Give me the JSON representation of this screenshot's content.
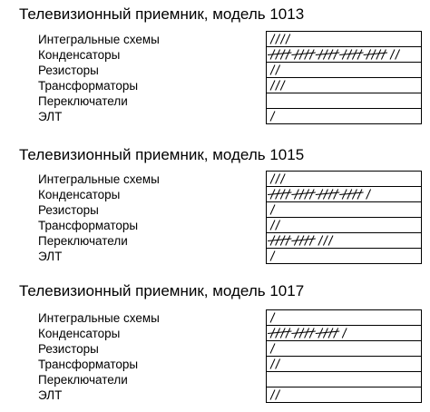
{
  "sections": [
    {
      "title": "Телевизионный приемник, модель 1013",
      "rows": [
        {
          "label": "Интегральные схемы",
          "tally": 4
        },
        {
          "label": "Конденсаторы",
          "tally": 27
        },
        {
          "label": "Резисторы",
          "tally": 2
        },
        {
          "label": "Трансформаторы",
          "tally": 3
        },
        {
          "label": "Переключатели",
          "tally": 0
        },
        {
          "label": "ЭЛТ",
          "tally": 1
        }
      ]
    },
    {
      "title": "Телевизионный приемник, модель 1015",
      "rows": [
        {
          "label": "Интегральные схемы",
          "tally": 3
        },
        {
          "label": "Конденсаторы",
          "tally": 21
        },
        {
          "label": "Резисторы",
          "tally": 1
        },
        {
          "label": "Трансформаторы",
          "tally": 2
        },
        {
          "label": "Переключатели",
          "tally": 13
        },
        {
          "label": "ЭЛТ",
          "tally": 1
        }
      ]
    },
    {
      "title": "Телевизионный приемник, модель 1017",
      "rows": [
        {
          "label": "Интегральные схемы",
          "tally": 1
        },
        {
          "label": "Конденсаторы",
          "tally": 16
        },
        {
          "label": "Резисторы",
          "tally": 1
        },
        {
          "label": "Трансформаторы",
          "tally": 2
        },
        {
          "label": "Переключатели",
          "tally": 0
        },
        {
          "label": "ЭЛТ",
          "tally": 2
        }
      ]
    }
  ]
}
